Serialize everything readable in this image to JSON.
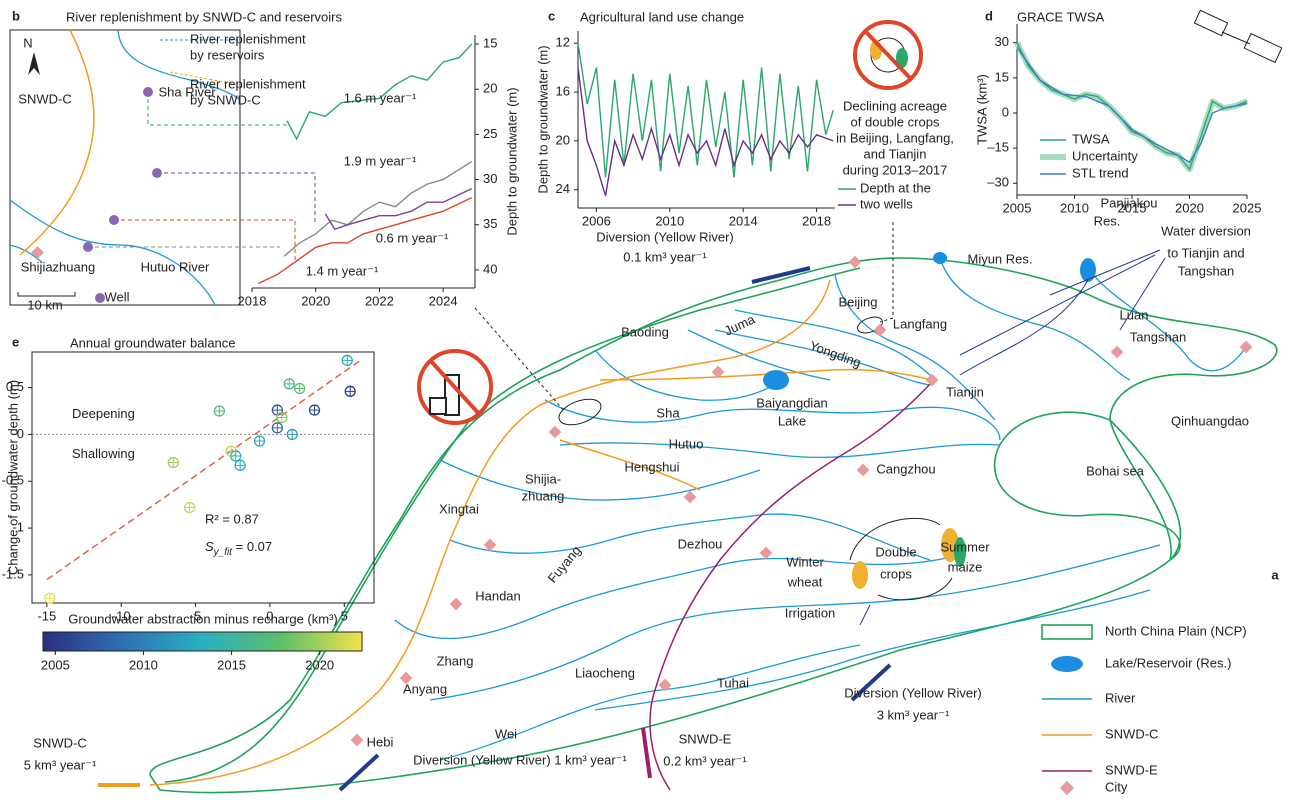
{
  "map": {
    "panel": "a",
    "colors": {
      "ncp": "#1fa35b",
      "river": "#1a9ad6",
      "snwd_c": "#f29b1d",
      "snwd_e": "#9c1f6e",
      "city": "#e89a9a",
      "flow": "#1f3c8c",
      "lake": "#1a8ee0"
    },
    "river_labels": [
      "Juma",
      "Yongding",
      "Sha",
      "Hutuo",
      "Fuyang",
      "Zhang",
      "Wei",
      "Tuhai",
      "Luan",
      "Baiyangdian",
      "Lake",
      "Bohai sea",
      "Miyun Res.",
      "Panjiakou",
      "Res.",
      "Irrigation"
    ],
    "city_labels": [
      "Beijing",
      "Langfang",
      "Baoding",
      "Tangshan",
      "Tianjin",
      "Qinhuangdao",
      "Shijia-",
      "zhuang",
      "Hengshui",
      "Cangzhou",
      "Xingtai",
      "Dezhou",
      "Handan",
      "Anyang",
      "Liaocheng",
      "Hebi"
    ],
    "flow_labels": [
      "Diversion (Yellow River)",
      "0.1 km³ year⁻¹",
      "Water diversion",
      "to Tianjin and",
      "Tangshan",
      "Diversion (Yellow River)",
      "3 km³ year⁻¹",
      "Diversion (Yellow River) 1 km³ year⁻¹"
    ],
    "snwd_c_labels": [
      "SNWD-C",
      "5 km³ year⁻¹"
    ],
    "snwd_e_labels": [
      "SNWD-E",
      "0.2 km³ year⁻¹"
    ],
    "crop_labels": [
      "Double",
      "crops",
      "Winter",
      "wheat",
      "Summer",
      "maize"
    ],
    "legend": [
      "North China Plain (NCP)",
      "Lake/Reservoir (Res.)",
      "River",
      "SNWD-C",
      "SNWD-E",
      "City"
    ]
  },
  "inset_map": {
    "labels": [
      "N",
      "SNWD-C",
      "Sha River",
      "Hutuo River",
      "Shijiazhuang",
      "10 km",
      "Well"
    ],
    "reservoir_note": [
      "River replenishment",
      "by reservoirs"
    ],
    "snwd_note": [
      "River replenishment",
      "by SNWD-C"
    ]
  },
  "chart_data": [
    {
      "type": "line",
      "panel": "b",
      "title": "River replenishment by SNWD-C and reservoirs",
      "ylabel": "Depth to groundwater (m)",
      "xlim": [
        2018,
        2025
      ],
      "xticks": [
        2018,
        2020,
        2022,
        2024
      ],
      "ylim": [
        42,
        14
      ],
      "yticks": [
        15,
        20,
        25,
        30,
        35,
        40
      ],
      "series": [
        {
          "color": "#2aa86a",
          "label": "1.6 m year⁻¹",
          "x": [
            2019.1,
            2019.4,
            2019.8,
            2020.3,
            2020.8,
            2021.5,
            2022,
            2022.5,
            2023,
            2023.5,
            2024,
            2024.5,
            2024.9
          ],
          "values": [
            23.5,
            25.5,
            22.5,
            23,
            21.5,
            21.2,
            21,
            19.5,
            18.5,
            19,
            17,
            16.5,
            15
          ]
        },
        {
          "color": "#8a8a8a",
          "label": "1.9 m year⁻¹",
          "x": [
            2019,
            2019.5,
            2020,
            2020.5,
            2021,
            2021.5,
            2022,
            2022.5,
            2023,
            2023.5,
            2024,
            2024.9
          ],
          "values": [
            38.5,
            37,
            36,
            34.5,
            35,
            33.5,
            32.5,
            33,
            31.5,
            30.5,
            30,
            28
          ]
        },
        {
          "color": "#7b3f99",
          "label": "0.6 m year⁻¹",
          "x": [
            2020.3,
            2020.6,
            2021,
            2021.5,
            2022,
            2022.5,
            2023,
            2023.5,
            2024,
            2024.9
          ],
          "values": [
            33.8,
            35.5,
            35,
            34.5,
            34,
            34,
            33.5,
            32.5,
            32.5,
            31
          ]
        },
        {
          "color": "#e0452a",
          "label": "1.4 m year⁻¹",
          "x": [
            2018.2,
            2018.8,
            2019.2,
            2019.6,
            2020,
            2020.5,
            2021,
            2021.5,
            2022,
            2022.5,
            2023,
            2023.5,
            2024,
            2024.9
          ],
          "values": [
            41.5,
            40.5,
            39.5,
            38.5,
            37.5,
            37,
            37,
            36,
            35.5,
            35,
            34.5,
            34,
            33.5,
            32
          ]
        }
      ]
    },
    {
      "type": "line",
      "panel": "c",
      "title": "Agricultural land use change",
      "ylabel": "Depth to groundwater (m)",
      "xlim": [
        2005,
        2019
      ],
      "xticks": [
        2006,
        2010,
        2014,
        2018
      ],
      "ylim": [
        25.5,
        11
      ],
      "yticks": [
        12,
        16,
        20,
        24
      ],
      "note": [
        "Declining acreage",
        "of double crops",
        "in Beijing, Langfang,",
        "and Tianjin",
        "during 2013–2017"
      ],
      "legend_text": [
        "Depth at the",
        "two wells"
      ],
      "series": [
        {
          "color": "#2aa86a",
          "x": [
            2005,
            2005.5,
            2006,
            2006.5,
            2007,
            2007.5,
            2008,
            2008.5,
            2009,
            2009.5,
            2010,
            2010.5,
            2011,
            2011.5,
            2012,
            2012.5,
            2013,
            2013.5,
            2014,
            2014.5,
            2015,
            2015.5,
            2016,
            2016.5,
            2017,
            2017.5,
            2018,
            2018.5,
            2018.9
          ],
          "values": [
            12,
            17,
            14,
            23,
            15,
            22,
            14.5,
            20,
            15,
            22.5,
            14.5,
            21,
            15.5,
            22,
            15,
            20.5,
            16,
            23,
            15,
            22,
            14,
            22.5,
            14.5,
            21.5,
            15.5,
            22.5,
            15,
            19.5,
            17.5
          ]
        },
        {
          "color": "#6a2c91",
          "x": [
            2005,
            2005.5,
            2006,
            2006.5,
            2007,
            2007.5,
            2008,
            2008.5,
            2009,
            2009.5,
            2010,
            2010.5,
            2011,
            2011.5,
            2012,
            2012.5,
            2013,
            2013.5,
            2014,
            2014.5,
            2015,
            2015.5,
            2016,
            2016.5,
            2017,
            2017.5,
            2018,
            2018.9
          ],
          "values": [
            14,
            20,
            22,
            24.5,
            20,
            22,
            19.5,
            21.5,
            19,
            21.5,
            19.5,
            22,
            19.5,
            21,
            20,
            22,
            19,
            22,
            20,
            21,
            19.5,
            21.5,
            20,
            21,
            19.5,
            20.5,
            19.5,
            20
          ]
        }
      ]
    },
    {
      "type": "line",
      "panel": "d",
      "title": "GRACE TWSA",
      "ylabel": "TWSA (km³)",
      "xlim": [
        2005,
        2025
      ],
      "xticks": [
        2005,
        2010,
        2015,
        2020,
        2025
      ],
      "ylim": [
        -35,
        38
      ],
      "yticks": [
        30,
        15,
        0,
        {
          "value": -15,
          "label": "–15"
        },
        {
          "value": -30,
          "label": "–30"
        }
      ],
      "band": {
        "name": "Uncertainty",
        "color": "#a8dcc0"
      },
      "series": [
        {
          "name": "TWSA",
          "color": "#2aa86a",
          "x": [
            2005,
            2006,
            2007,
            2008,
            2009,
            2010,
            2011,
            2012,
            2013,
            2014,
            2015,
            2016,
            2017,
            2018,
            2019,
            2020,
            2021,
            2022,
            2023,
            2024,
            2025
          ],
          "values": [
            30,
            20,
            14,
            10,
            8,
            6,
            8,
            7,
            3,
            -2,
            -8,
            -10,
            -14,
            -17,
            -18,
            -24,
            -10,
            5,
            2,
            3,
            5
          ]
        },
        {
          "name": "STL trend",
          "color": "#3b7fc4",
          "x": [
            2005,
            2007,
            2009,
            2011,
            2013,
            2015,
            2017,
            2019,
            2020,
            2021,
            2022,
            2023,
            2025
          ],
          "values": [
            28,
            14,
            8,
            7,
            3,
            -7,
            -13,
            -18,
            -21,
            -13,
            0,
            2,
            4
          ]
        }
      ]
    },
    {
      "type": "scatter",
      "panel": "e",
      "title": "Annual groundwater balance",
      "xlabel": "Groundwater abstraction minus recharge (km³)",
      "ylabel": "Change of groundwater depth (m)",
      "xlim": [
        -16,
        7
      ],
      "xticks": [
        -15,
        -10,
        -5,
        0,
        5
      ],
      "ylim": [
        -1.8,
        0.88
      ],
      "yticks": [
        0.5,
        0,
        -0.5,
        -1,
        -1.5
      ],
      "zero_labels": [
        "Deepening",
        "Shallowing"
      ],
      "annotations": [
        "R² = 0.87"
      ],
      "s_fit": {
        "symbol": "S",
        "subscript": "y_fit",
        "text": " = 0.07"
      },
      "fit": {
        "x": [
          -15,
          6
        ],
        "y": [
          -1.55,
          0.78
        ],
        "color": "#e05a3a"
      },
      "x": [
        5.2,
        5.4,
        3,
        0.5,
        1.3,
        2,
        -3.4,
        0.8,
        0.5,
        -0.7,
        1.5,
        -2.6,
        -2.3,
        -2,
        -6.5,
        -5.4,
        -14.8
      ],
      "y": [
        0.79,
        0.46,
        0.26,
        0.26,
        0.54,
        0.49,
        0.25,
        0.18,
        0.07,
        -0.07,
        0,
        -0.18,
        -0.23,
        -0.33,
        -0.3,
        -0.78,
        -1.75
      ],
      "year": [
        2013,
        2005,
        2006,
        2007,
        2016,
        2018,
        2017,
        2019,
        2008,
        2013,
        2012,
        2021,
        2014,
        2013,
        2020,
        2021,
        2022
      ],
      "colorbar": {
        "lim": [
          2004.3,
          2022.4
        ],
        "ticks": [
          2005,
          2010,
          2015,
          2020
        ],
        "colors": [
          "#2b2f7f",
          "#2f6fb5",
          "#2ab0c0",
          "#5cbf6a",
          "#f2e34c"
        ]
      }
    }
  ]
}
